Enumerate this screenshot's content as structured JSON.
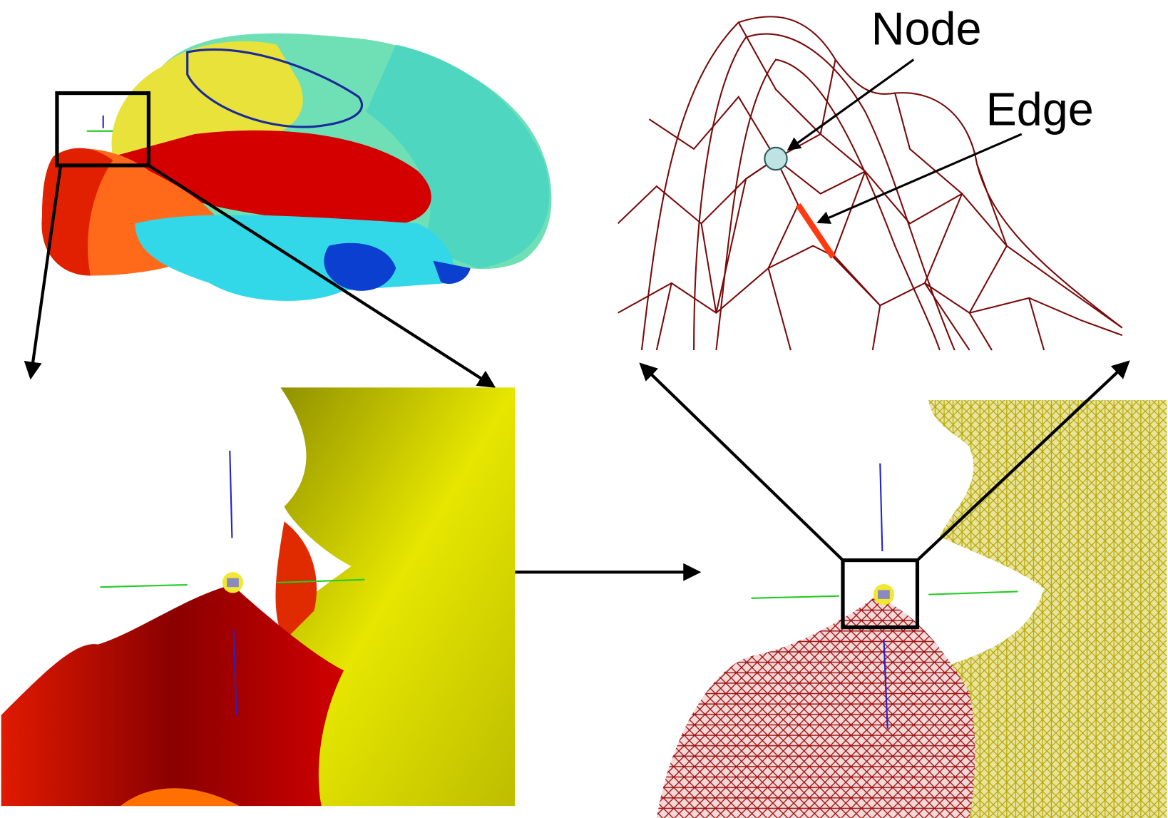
{
  "labels": {
    "node": "Node",
    "edge": "Edge"
  }
}
